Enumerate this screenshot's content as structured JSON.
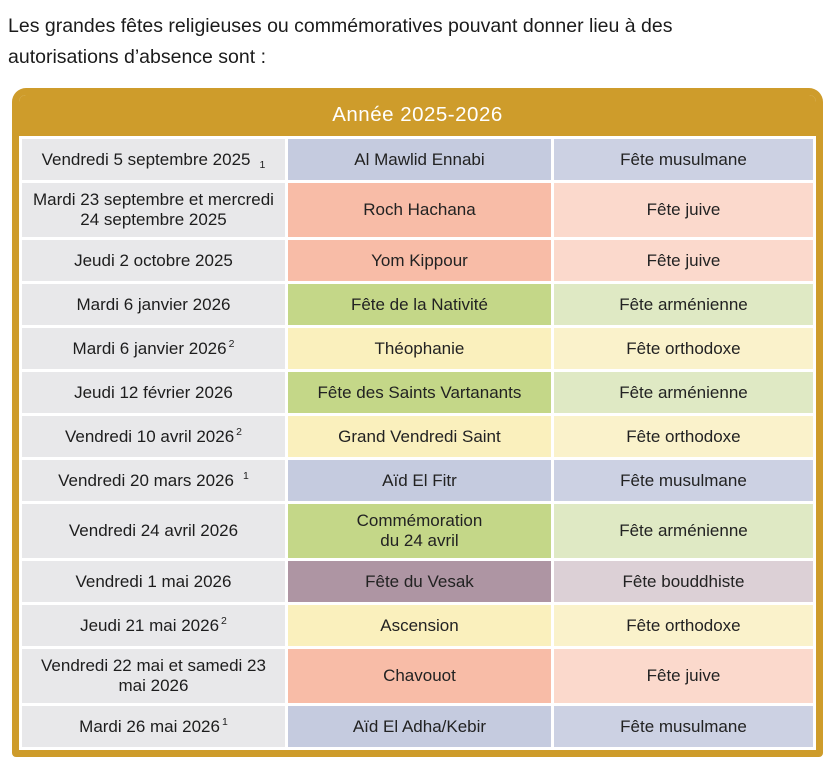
{
  "intro_text": "Les grandes fêtes religieuses ou commémoratives pouvant donner lieu à des\nautorisations d’absence sont :",
  "table": {
    "title": "Année 2025-2026",
    "colors": {
      "gold_border": "#CE9C2B",
      "date_column_bg": "#E8E8EA",
      "header_text": "#FFFFFF",
      "cell_gap": "#FFFFFF"
    },
    "themes": {
      "muslim": {
        "mid": "#C5CBDF",
        "light": "#CCD1E3"
      },
      "jewish": {
        "mid": "#F8BCA7",
        "light": "#FBD9CC"
      },
      "armenian": {
        "mid": "#C4D788",
        "light": "#DFE9C4"
      },
      "orthodox": {
        "mid": "#FAF0BD",
        "light": "#FAF2CB"
      },
      "buddhist": {
        "mid": "#AE95A3",
        "light": "#DCD0D6"
      }
    },
    "rows": [
      {
        "date": "Vendredi 5 septembre 2025",
        "marker": "1",
        "marker_pos": "sub",
        "marker_gap": true,
        "holiday": "Al Mawlid Ennabi",
        "category": "Fête musulmane",
        "theme": "muslim"
      },
      {
        "date": "Mardi 23 septembre et mercredi 24 septembre 2025",
        "marker": "",
        "marker_pos": "",
        "marker_gap": false,
        "holiday": "Roch Hachana",
        "category": "Fête juive",
        "theme": "jewish"
      },
      {
        "date": "Jeudi 2 octobre 2025",
        "marker": "",
        "marker_pos": "",
        "marker_gap": false,
        "holiday": "Yom Kippour",
        "category": "Fête juive",
        "theme": "jewish"
      },
      {
        "date": "Mardi 6 janvier 2026",
        "marker": "",
        "marker_pos": "",
        "marker_gap": false,
        "holiday": "Fête de la Nativité",
        "category": "Fête arménienne",
        "theme": "armenian"
      },
      {
        "date": "Mardi 6 janvier 2026",
        "marker": "2",
        "marker_pos": "sup",
        "marker_gap": false,
        "holiday": "Théophanie",
        "category": "Fête orthodoxe",
        "theme": "orthodox"
      },
      {
        "date": "Jeudi 12 février 2026",
        "marker": "",
        "marker_pos": "",
        "marker_gap": false,
        "holiday": "Fête des Saints Vartanants",
        "category": "Fête arménienne",
        "theme": "armenian"
      },
      {
        "date": "Vendredi 10 avril 2026",
        "marker": "2",
        "marker_pos": "sup",
        "marker_gap": false,
        "holiday": "Grand Vendredi Saint",
        "category": "Fête orthodoxe",
        "theme": "orthodox"
      },
      {
        "date": "Vendredi 20 mars 2026",
        "marker": "1",
        "marker_pos": "sup",
        "marker_gap": true,
        "holiday": "Aïd El Fitr",
        "category": "Fête musulmane",
        "theme": "muslim"
      },
      {
        "date": "Vendredi 24 avril 2026",
        "marker": "",
        "marker_pos": "",
        "marker_gap": false,
        "holiday": "Commémoration\ndu 24 avril",
        "category": "Fête arménienne",
        "theme": "armenian"
      },
      {
        "date": "Vendredi 1 mai 2026",
        "marker": "",
        "marker_pos": "",
        "marker_gap": false,
        "holiday": "Fête du Vesak",
        "category": "Fête bouddhiste",
        "theme": "buddhist"
      },
      {
        "date": "Jeudi 21 mai 2026",
        "marker": "2",
        "marker_pos": "sup",
        "marker_gap": false,
        "holiday": "Ascension",
        "category": "Fête orthodoxe",
        "theme": "orthodox"
      },
      {
        "date": "Vendredi 22 mai et samedi 23 mai 2026",
        "marker": "",
        "marker_pos": "",
        "marker_gap": false,
        "holiday": "Chavouot",
        "category": "Fête juive",
        "theme": "jewish"
      },
      {
        "date": "Mardi 26 mai 2026",
        "marker": "1",
        "marker_pos": "sup",
        "marker_gap": false,
        "holiday": "Aïd El Adha/Kebir",
        "category": "Fête musulmane",
        "theme": "muslim"
      }
    ]
  }
}
